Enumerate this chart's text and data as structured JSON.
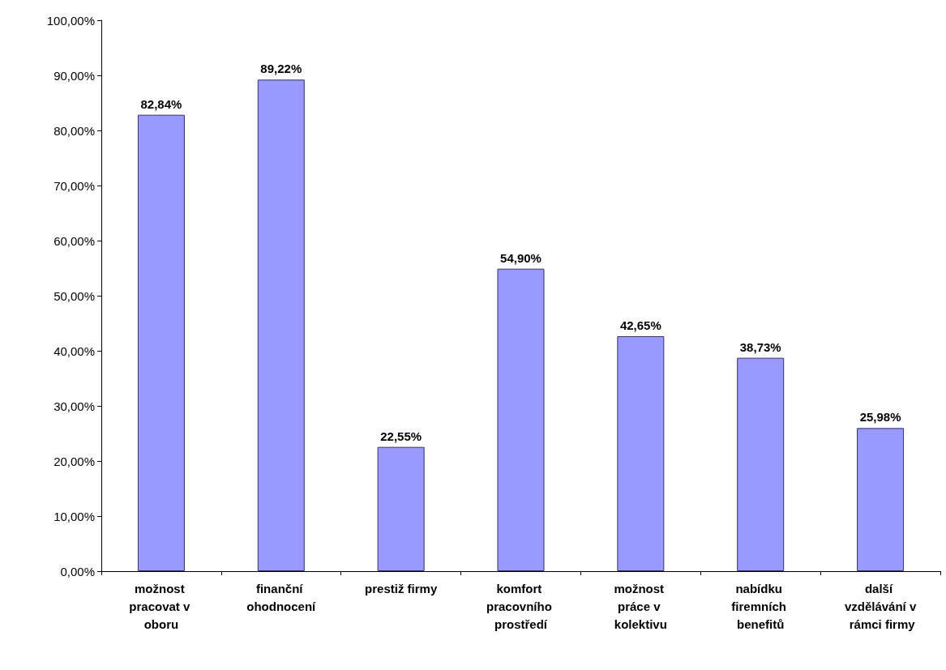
{
  "chart_data": {
    "type": "bar",
    "categories": [
      "možnost pracovat v oboru",
      "finanční ohodnocení",
      "prestiž firmy",
      "komfort pracovního prostředí",
      "možnost práce v kolektivu",
      "nabídku firemních benefitů",
      "další vzdělávání v rámci firmy"
    ],
    "values": [
      82.84,
      89.22,
      22.55,
      54.9,
      42.65,
      38.73,
      25.98
    ],
    "value_labels": [
      "82,84%",
      "89,22%",
      "22,55%",
      "54,90%",
      "42,65%",
      "38,73%",
      "25,98%"
    ],
    "color": "#9999ff",
    "ylim": [
      0,
      100
    ],
    "yticks": [
      {
        "value": 0,
        "label": "0,00%"
      },
      {
        "value": 10,
        "label": "10,00%"
      },
      {
        "value": 20,
        "label": "20,00%"
      },
      {
        "value": 30,
        "label": "30,00%"
      },
      {
        "value": 40,
        "label": "40,00%"
      },
      {
        "value": 50,
        "label": "50,00%"
      },
      {
        "value": 60,
        "label": "60,00%"
      },
      {
        "value": 70,
        "label": "70,00%"
      },
      {
        "value": 80,
        "label": "80,00%"
      },
      {
        "value": 90,
        "label": "90,00%"
      },
      {
        "value": 100,
        "label": "100,00%"
      }
    ],
    "grid": false
  }
}
